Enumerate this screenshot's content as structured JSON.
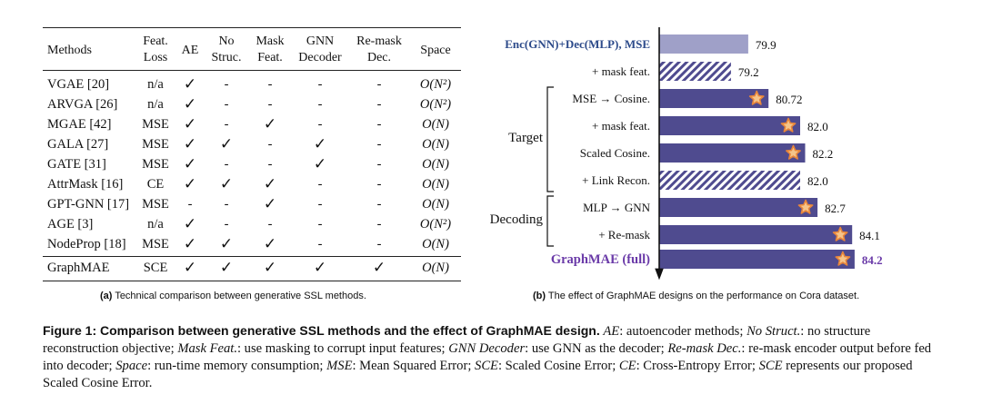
{
  "table": {
    "headers": {
      "methods": "Methods",
      "feat_loss": [
        "Feat.",
        "Loss"
      ],
      "ae": "AE",
      "no_struc": [
        "No",
        "Struc."
      ],
      "mask_feat": [
        "Mask",
        "Feat."
      ],
      "gnn_decoder": [
        "GNN",
        "Decoder"
      ],
      "remask_dec": [
        "Re-mask",
        "Dec."
      ],
      "space": "Space"
    },
    "rows": [
      {
        "name": "VGAE [20]",
        "loss": "n/a",
        "ae": "✓",
        "ns": "-",
        "mf": "-",
        "gnn": "-",
        "rm": "-",
        "space": "O(N²)"
      },
      {
        "name": "ARVGA [26]",
        "loss": "n/a",
        "ae": "✓",
        "ns": "-",
        "mf": "-",
        "gnn": "-",
        "rm": "-",
        "space": "O(N²)"
      },
      {
        "name": "MGAE [42]",
        "loss": "MSE",
        "ae": "✓",
        "ns": "-",
        "mf": "✓",
        "gnn": "-",
        "rm": "-",
        "space": "O(N)"
      },
      {
        "name": "GALA [27]",
        "loss": "MSE",
        "ae": "✓",
        "ns": "✓",
        "mf": "-",
        "gnn": "✓",
        "rm": "-",
        "space": "O(N)"
      },
      {
        "name": "GATE [31]",
        "loss": "MSE",
        "ae": "✓",
        "ns": "-",
        "mf": "-",
        "gnn": "✓",
        "rm": "-",
        "space": "O(N)"
      },
      {
        "name": "AttrMask [16]",
        "loss": "CE",
        "ae": "✓",
        "ns": "✓",
        "mf": "✓",
        "gnn": "-",
        "rm": "-",
        "space": "O(N)"
      },
      {
        "name": "GPT-GNN [17]",
        "loss": "MSE",
        "ae": "-",
        "ns": "-",
        "mf": "✓",
        "gnn": "-",
        "rm": "-",
        "space": "O(N)"
      },
      {
        "name": "AGE [3]",
        "loss": "n/a",
        "ae": "✓",
        "ns": "-",
        "mf": "-",
        "gnn": "-",
        "rm": "-",
        "space": "O(N²)"
      },
      {
        "name": "NodeProp [18]",
        "loss": "MSE",
        "ae": "✓",
        "ns": "✓",
        "mf": "✓",
        "gnn": "-",
        "rm": "-",
        "space": "O(N)"
      }
    ],
    "final_row": {
      "name": "GraphMAE",
      "loss": "SCE",
      "ae": "✓",
      "ns": "✓",
      "mf": "✓",
      "gnn": "✓",
      "rm": "✓",
      "space": "O(N)"
    },
    "caption_label": "(a)",
    "caption_text": "Technical comparison between generative SSL methods."
  },
  "chart_data": {
    "type": "bar",
    "orientation": "horizontal",
    "categories": [
      "Enc(GNN)+Dec(MLP), MSE",
      "+ mask feat.",
      "MSE → Cosine.",
      "+ mask feat.",
      "Scaled Cosine.",
      "+ Link Recon.",
      "MLP → GNN",
      "+ Re-mask",
      "GraphMAE (full)"
    ],
    "values": [
      79.9,
      79.2,
      80.72,
      82.0,
      82.2,
      82.0,
      82.7,
      84.1,
      84.2
    ],
    "value_labels": [
      "79.9",
      "79.2",
      "80.72",
      "82.0",
      "82.2",
      "82.0",
      "82.7",
      "84.1",
      "84.2"
    ],
    "styles": [
      "light",
      "hatched",
      "solid",
      "solid",
      "solid",
      "hatched",
      "solid",
      "solid",
      "solid"
    ],
    "star_marked": [
      false,
      false,
      true,
      true,
      true,
      false,
      true,
      true,
      true
    ],
    "groups": [
      {
        "label": "Target",
        "from": 2,
        "to": 5
      },
      {
        "label": "Decoding",
        "from": 6,
        "to": 7
      }
    ],
    "colors": {
      "bar": "#4f4b8f",
      "light": "#9fa0c8",
      "label_blue": "#2c4a8a",
      "label_purple": "#6a3aa8",
      "star_fill": "#f5c58a",
      "star_stroke": "#e8863a"
    },
    "xlim": [
      76.3,
      85.5
    ],
    "caption_label": "(b)",
    "caption_text": "The effect of GraphMAE designs on the performance on Cora dataset."
  },
  "figure_caption": {
    "title": "Figure 1: Comparison between generative SSL methods and the effect of GraphMAE design.",
    "body": [
      {
        "t": " ",
        "i": false
      },
      {
        "t": "AE",
        "i": true
      },
      {
        "t": ": autoencoder methods; ",
        "i": false
      },
      {
        "t": "No Struct.",
        "i": true
      },
      {
        "t": ": no structure reconstruction objective; ",
        "i": false
      },
      {
        "t": "Mask Feat.",
        "i": true
      },
      {
        "t": ": use masking to corrupt input features; ",
        "i": false
      },
      {
        "t": "GNN Decoder",
        "i": true
      },
      {
        "t": ": use GNN as the decoder; ",
        "i": false
      },
      {
        "t": "Re-mask Dec.",
        "i": true
      },
      {
        "t": ": re-mask encoder output before fed into decoder; ",
        "i": false
      },
      {
        "t": "Space",
        "i": true
      },
      {
        "t": ": run-time memory consumption; ",
        "i": false
      },
      {
        "t": "MSE",
        "i": true
      },
      {
        "t": ": Mean Squared Error; ",
        "i": false
      },
      {
        "t": "SCE",
        "i": true
      },
      {
        "t": ": Scaled Cosine Error; ",
        "i": false
      },
      {
        "t": "CE",
        "i": true
      },
      {
        "t": ": Cross-Entropy Error; ",
        "i": false
      },
      {
        "t": "SCE",
        "i": true
      },
      {
        "t": " represents our proposed Scaled Cosine Error.",
        "i": false
      }
    ]
  }
}
